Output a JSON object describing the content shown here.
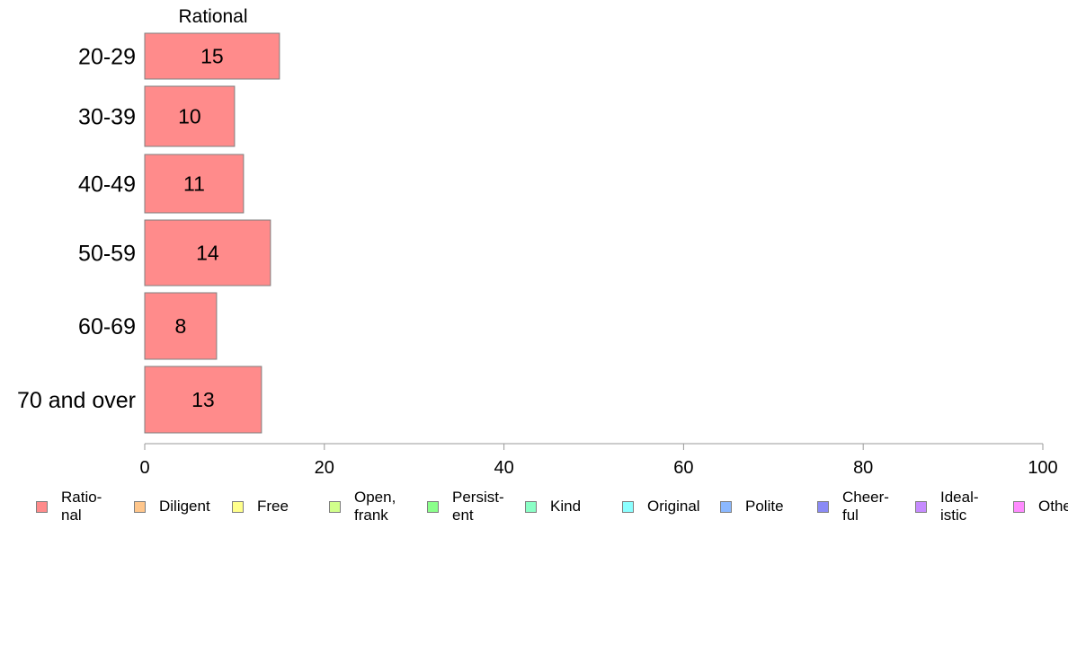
{
  "chart_data": {
    "type": "bar",
    "orientation": "horizontal",
    "stacked": true,
    "categories": [
      "20-29",
      "30-39",
      "40-49",
      "50-59",
      "60-69",
      "70 and over"
    ],
    "series": [
      {
        "name": "Rational",
        "values": [
          15,
          10,
          11,
          14,
          8,
          13
        ]
      }
    ],
    "series_header": "Rational",
    "data_labels": [
      "15",
      "10",
      "11",
      "14",
      "8",
      "13"
    ],
    "xlim": [
      0,
      100
    ],
    "xticks": [
      0,
      20,
      40,
      60,
      80,
      100
    ],
    "xtick_labels": [
      "0",
      "20",
      "40",
      "60",
      "80",
      "100"
    ],
    "grid": false,
    "legend_position": "bottom",
    "legend": [
      {
        "label": "Ratio-\nnal",
        "color": "#ff8b8b"
      },
      {
        "label": "Diligent",
        "color": "#ffc68b"
      },
      {
        "label": "Free",
        "color": "#ffff8b"
      },
      {
        "label": "Open,\nfrank",
        "color": "#d1ff8b"
      },
      {
        "label": "Persist-\nent",
        "color": "#8bff8b"
      },
      {
        "label": "Kind",
        "color": "#8bffc6"
      },
      {
        "label": "Original",
        "color": "#8bffff"
      },
      {
        "label": "Polite",
        "color": "#8bb8ff"
      },
      {
        "label": "Cheer-\nful",
        "color": "#8b8bf5"
      },
      {
        "label": "Ideal-\nistic",
        "color": "#c68bff"
      },
      {
        "label": "Other",
        "color": "#ff8bff"
      }
    ],
    "colors": {
      "bar_fill": "#ff8b8b",
      "bar_stroke": "#7f7f7f",
      "axis": "#999999"
    }
  }
}
